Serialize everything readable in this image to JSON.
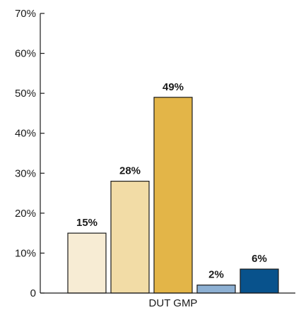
{
  "chart_data": {
    "type": "bar",
    "categories": [
      "DUT GMP"
    ],
    "series": [
      {
        "values": [
          15
        ],
        "label": "15%",
        "color": "#f7ecd4"
      },
      {
        "values": [
          28
        ],
        "label": "28%",
        "color": "#f2dca6"
      },
      {
        "values": [
          49
        ],
        "label": "49%",
        "color": "#e3b548"
      },
      {
        "values": [
          2
        ],
        "label": "2%",
        "color": "#8db0d3"
      },
      {
        "values": [
          6
        ],
        "label": "6%",
        "color": "#08528c"
      }
    ],
    "title": "",
    "xlabel": "",
    "ylabel": "",
    "ylim": [
      0,
      70
    ],
    "yticks": [
      0,
      10,
      20,
      30,
      40,
      50,
      60,
      70
    ],
    "ytick_labels": [
      "0",
      "10%",
      "20%",
      "30%",
      "40%",
      "50%",
      "60%",
      "70%"
    ],
    "grid": false,
    "legend": "none",
    "bar_outline_color": "#1a1a1a"
  }
}
